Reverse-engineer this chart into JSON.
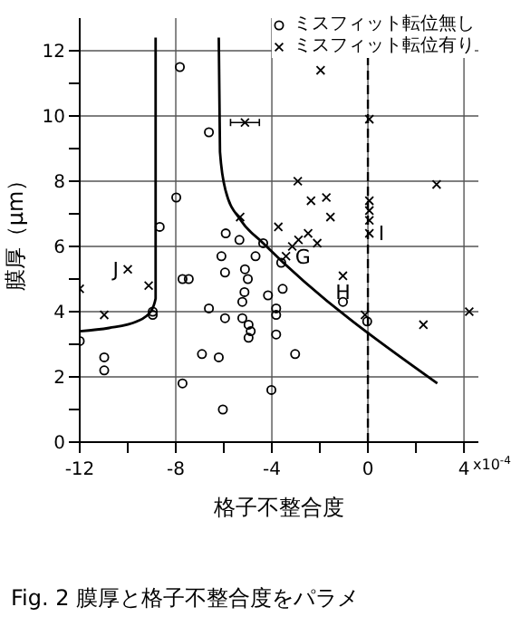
{
  "chart_data": {
    "type": "scatter",
    "xlabel": "格子不整合度",
    "ylabel": "膜厚（μm）",
    "xlim": [
      -12,
      4.6
    ],
    "ylim": [
      0,
      13
    ],
    "xticks": [
      -12,
      {
        "value": -10,
        "label": null
      },
      -8,
      {
        "value": -6,
        "label": null
      },
      -4,
      {
        "value": -2,
        "label": null
      },
      0,
      {
        "value": 2,
        "label": null
      },
      4
    ],
    "yticks": [
      0,
      {
        "value": 1,
        "label": null
      },
      2,
      {
        "value": 3,
        "label": null
      },
      4,
      {
        "value": 5,
        "label": null
      },
      6,
      {
        "value": 7,
        "label": null
      },
      8,
      {
        "value": 9,
        "label": null
      },
      10,
      {
        "value": 11,
        "label": null
      },
      12
    ],
    "grid": true,
    "legend": "top right",
    "ref_lines": [
      {
        "axis": "x",
        "value": 0,
        "line_style": "dashed",
        "color": "#000000"
      }
    ],
    "series": [
      {
        "name": "ミスフィット転位無し",
        "marker": "circle",
        "color": "#000000",
        "x": [
          -7.83,
          -6.62,
          -7.98,
          -8.67,
          -5.92,
          -5.35,
          -4.36,
          -6.1,
          -4.68,
          -3.61,
          -5.95,
          -5.12,
          -7.72,
          -7.46,
          -5.0,
          -5.14,
          -3.55,
          -4.16,
          -5.23,
          -1.04,
          -8.96,
          -8.96,
          -6.62,
          -5.95,
          -3.82,
          -3.82,
          -5.23,
          -4.97,
          -4.88,
          -4.97,
          -3.82,
          -0.03,
          -12,
          -10.98,
          -10.98,
          -6.91,
          -6.21,
          -3.03,
          -7.72,
          -4.02,
          -6.04
        ],
        "values": [
          11.5,
          9.5,
          7.5,
          6.6,
          6.4,
          6.2,
          6.1,
          5.7,
          5.7,
          5.5,
          5.2,
          5.3,
          5.0,
          5.0,
          5.0,
          4.6,
          4.7,
          4.5,
          4.3,
          4.3,
          4.0,
          3.9,
          4.1,
          3.8,
          4.1,
          3.9,
          3.8,
          3.6,
          3.4,
          3.2,
          3.3,
          3.7,
          3.1,
          2.6,
          2.2,
          2.7,
          2.6,
          2.7,
          1.8,
          1.6,
          1.0
        ]
      },
      {
        "name": "ミスフィット転位有り",
        "marker": "cross",
        "color": "#000000",
        "x": [
          -1.97,
          -5.12,
          0.06,
          -2.92,
          2.86,
          -2.37,
          -1.73,
          0.06,
          0.06,
          0.06,
          -1.56,
          -5.32,
          -3.73,
          0.06,
          -2.49,
          -2.89,
          -2.11,
          -3.15,
          -3.41,
          -10.0,
          -9.13,
          -12.0,
          -1.04,
          -10.98,
          -0.12,
          2.31,
          4.22
        ],
        "values": [
          11.4,
          9.8,
          9.9,
          8.0,
          7.9,
          7.4,
          7.5,
          7.4,
          7.1,
          6.8,
          6.9,
          6.9,
          6.6,
          6.4,
          6.4,
          6.2,
          6.1,
          6.0,
          5.7,
          5.3,
          4.8,
          4.7,
          5.1,
          3.9,
          3.9,
          3.6,
          4.0
        ],
        "xerrors": [
          null,
          0.6,
          null,
          null,
          null,
          null,
          null,
          null,
          null,
          null,
          null,
          null,
          null,
          null,
          null,
          null,
          null,
          null,
          null,
          null,
          null,
          null,
          null,
          null,
          null,
          null,
          null
        ]
      },
      {
        "type": "line",
        "marker": "none",
        "color": "#000000",
        "x": [
          -8.84,
          -8.84,
          -9.05,
          -9.62,
          -10.78,
          -12
        ],
        "values": [
          12.4,
          4.4,
          4.0,
          3.7,
          3.5,
          3.4
        ]
      },
      {
        "type": "line",
        "marker": "none",
        "color": "#000000",
        "x": [
          -6.21,
          -6.16,
          -5.92,
          -5.29,
          -4.36,
          2.89
        ],
        "values": [
          12.4,
          8.9,
          7.7,
          6.8,
          6.1,
          1.8
        ]
      }
    ],
    "annotations": [
      {
        "text": "J",
        "x": -10.0,
        "y": 5.3
      },
      {
        "text": "G",
        "x": -3.41,
        "y": 5.7
      },
      {
        "text": "H",
        "x": -1.04,
        "y": 5.1
      },
      {
        "text": "I",
        "x": 0.06,
        "y": 6.4
      },
      "x10$^{-4}$",
      "Fig. 2 膜厚と格子不整合度をパラメ"
    ]
  }
}
